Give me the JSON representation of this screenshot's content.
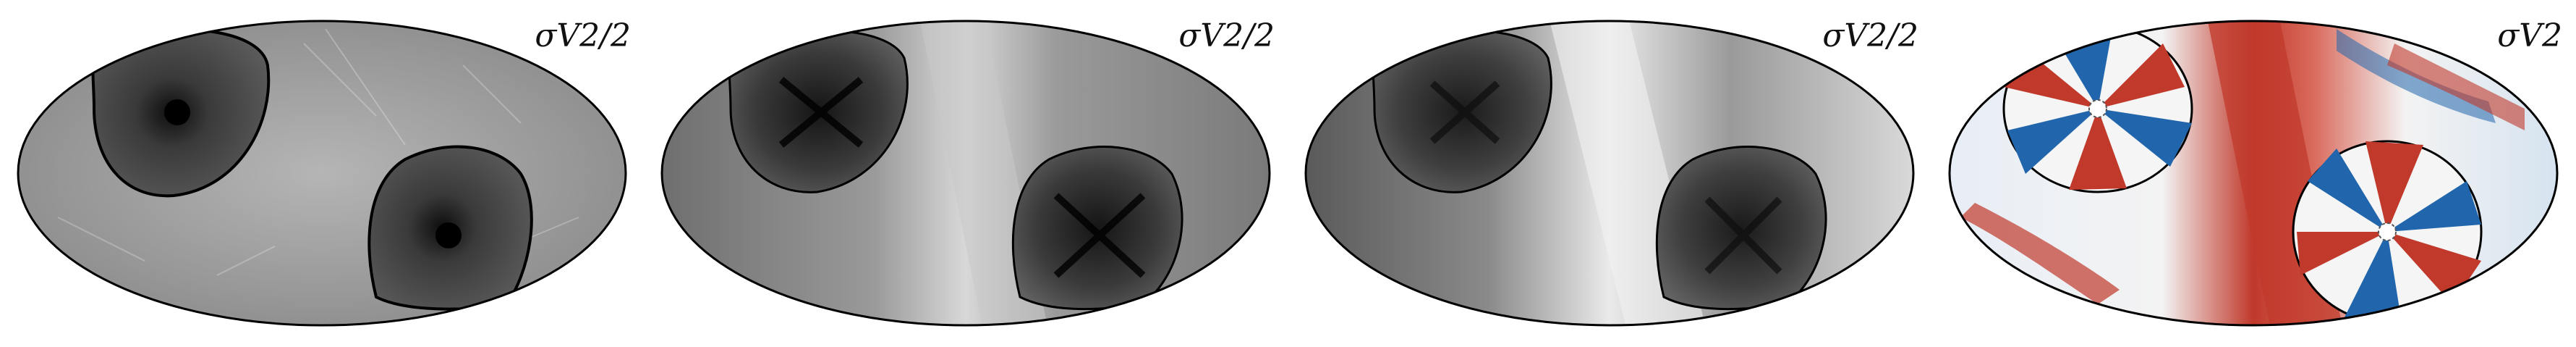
{
  "figure": {
    "panels": [
      {
        "id": "panel-1",
        "label": "σV2/2",
        "colormap": "grayscale",
        "style": "dark-lobes"
      },
      {
        "id": "panel-2",
        "label": "σV2/2",
        "colormap": "grayscale",
        "style": "light-band"
      },
      {
        "id": "panel-3",
        "label": "σV2/2",
        "colormap": "grayscale",
        "style": "strong-band"
      },
      {
        "id": "panel-4",
        "label": "σV2",
        "colormap": "RdBu",
        "style": "diverging"
      }
    ],
    "colors": {
      "diverging_red": "#c0392b",
      "diverging_blue": "#2166ac",
      "diverging_white": "#f7f7f7",
      "gray_dark": "#1a1a1a",
      "gray_light": "#eeeeee"
    }
  }
}
